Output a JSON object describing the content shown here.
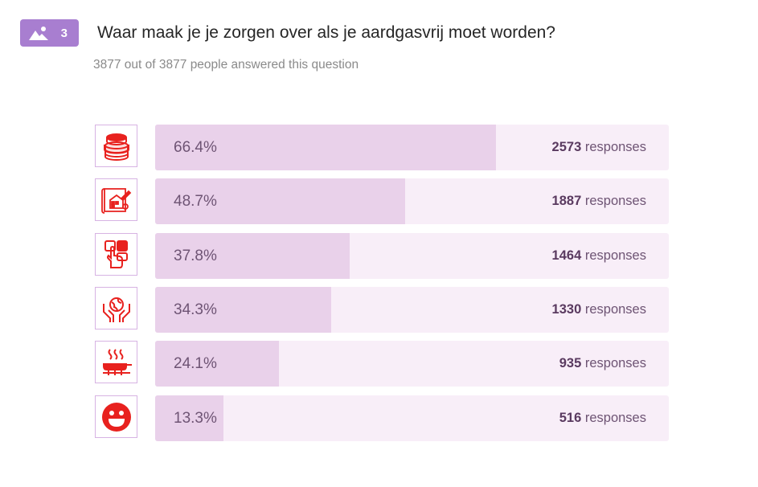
{
  "question": {
    "badge_icon": "image-icon",
    "number": "3",
    "title": "Waar maak je je zorgen over als je aardgasvrij moet worden?",
    "answered_count": "3877",
    "answered_connector": "out of",
    "total_count": "3877",
    "answered_suffix": "people answered this question"
  },
  "colors": {
    "badge": "#a87ed0",
    "bar_fill": "#e9d1ea",
    "bar_track": "#f8eef8",
    "icon_red": "#e8211e"
  },
  "chart_data": {
    "type": "bar",
    "orientation": "horizontal",
    "title": "Waar maak je je zorgen over als je aardgasvrij moet worden?",
    "unit_label": "responses",
    "categories": [
      "coins-icon",
      "house-plan-icon",
      "tap-buttons-icon",
      "hands-globe-icon",
      "cooking-pan-icon",
      "smiley-icon"
    ],
    "percent_labels": [
      "66.4%",
      "48.7%",
      "37.8%",
      "34.3%",
      "24.1%",
      "13.3%"
    ],
    "values": [
      66.4,
      48.7,
      37.8,
      34.3,
      24.1,
      13.3
    ],
    "counts": [
      2573,
      1887,
      1464,
      1330,
      935,
      516
    ],
    "xlim": [
      0,
      100
    ]
  }
}
